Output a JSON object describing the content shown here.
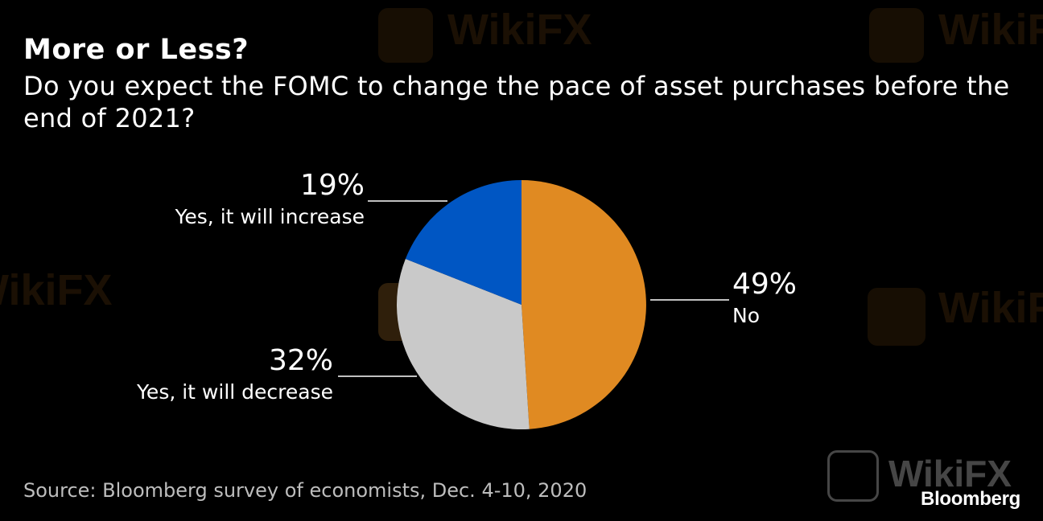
{
  "header": {
    "title": "More or Less?",
    "subtitle": "Do you expect the FOMC to change the pace of asset purchases before the end of 2021?"
  },
  "chart_data": {
    "type": "pie",
    "title": "More or Less?",
    "subtitle": "Do you expect the FOMC to change the pace of asset purchases before the end of 2021?",
    "slices": [
      {
        "label": "No",
        "value": 49,
        "value_label": "49%",
        "color": "#E08A22"
      },
      {
        "label": "Yes, it will decrease",
        "value": 32,
        "value_label": "32%",
        "color": "#C9C9C9"
      },
      {
        "label": "Yes, it will increase",
        "value": 19,
        "value_label": "19%",
        "color": "#0056C3"
      }
    ],
    "start": "12 o'clock",
    "direction": "clockwise",
    "legend": "none"
  },
  "footer": {
    "source": "Source: Bloomberg survey of economists, Dec. 4-10, 2020",
    "brand": "Bloomberg"
  },
  "watermark": {
    "text": "WikiFX",
    "color": "#B4782A"
  }
}
